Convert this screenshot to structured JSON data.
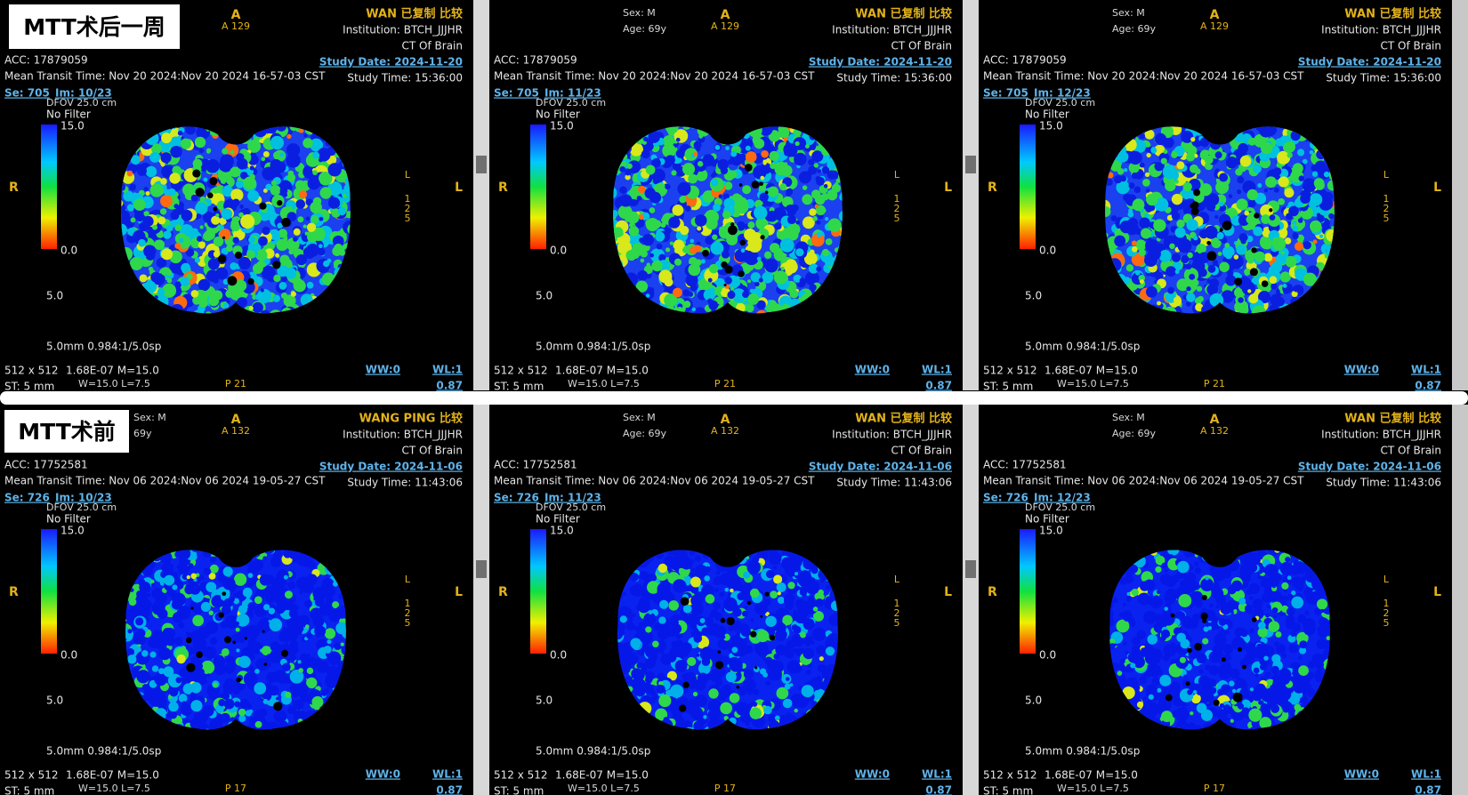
{
  "labels": [
    "MTT术后一周",
    "MTT术前"
  ],
  "panels": [
    {
      "header": "WAN 已复制 比较",
      "institution": "Institution: BTCH_JJJHR",
      "exam": "CT Of Brain",
      "study_date": "Study Date: 2024-11-20",
      "study_time": "Study Time: 15:36:00",
      "acc": "ACC: 17879059",
      "mtt": "Mean Transit Time: Nov 20 2024:Nov 20 2024 16-57-03 CST",
      "series": "Se: 705",
      "image": "Im: 10/23",
      "dfov": "DFOV 25.0 cm",
      "filter": "No Filter",
      "scale_max": "15.0",
      "scale_min": "0.0",
      "window": "5.0",
      "a_top": "A",
      "a_num": "A 129",
      "r_side": "R",
      "l_side": "L",
      "side_letter": "L",
      "side_digits": [
        "1",
        "2",
        "5"
      ],
      "thickness": "5.0mm 0.984:1/5.0sp",
      "matrix": "512 x 512",
      "meta": "1.68E-07 M=15.0",
      "st": "ST: 5 mm",
      "wl_line": "W=15.0 L=7.5",
      "p_label": "P 21",
      "ww": "WW:0",
      "wl": "WL:1",
      "zoom": "0.87"
    },
    {
      "header": "WAN 已复制 比较",
      "sex": "Sex: M",
      "age": "Age: 69y",
      "institution": "Institution: BTCH_JJJHR",
      "exam": "CT Of Brain",
      "study_date": "Study Date: 2024-11-20",
      "study_time": "Study Time: 15:36:00",
      "acc": "ACC: 17879059",
      "mtt": "Mean Transit Time: Nov 20 2024:Nov 20 2024 16-57-03 CST",
      "series": "Se: 705",
      "image": "Im: 11/23",
      "dfov": "DFOV 25.0 cm",
      "filter": "No Filter",
      "scale_max": "15.0",
      "scale_min": "0.0",
      "window": "5.0",
      "a_top": "A",
      "a_num": "A 129",
      "r_side": "R",
      "l_side": "L",
      "side_letter": "L",
      "side_digits": [
        "1",
        "2",
        "5"
      ],
      "thickness": "5.0mm 0.984:1/5.0sp",
      "matrix": "512 x 512",
      "meta": "1.68E-07 M=15.0",
      "st": "ST: 5 mm",
      "wl_line": "W=15.0 L=7.5",
      "p_label": "P 21",
      "ww": "WW:0",
      "wl": "WL:1",
      "zoom": "0.87"
    },
    {
      "header": "WAN 已复制 比较",
      "sex": "Sex: M",
      "age": "Age: 69y",
      "institution": "Institution: BTCH_JJJHR",
      "exam": "CT Of Brain",
      "study_date": "Study Date: 2024-11-20",
      "study_time": "Study Time: 15:36:00",
      "acc": "ACC: 17879059",
      "mtt": "Mean Transit Time: Nov 20 2024:Nov 20 2024 16-57-03 CST",
      "series": "Se: 705",
      "image": "Im: 12/23",
      "dfov": "DFOV 25.0 cm",
      "filter": "No Filter",
      "scale_max": "15.0",
      "scale_min": "0.0",
      "window": "5.0",
      "a_top": "A",
      "a_num": "A 129",
      "r_side": "R",
      "l_side": "L",
      "side_letter": "L",
      "side_digits": [
        "1",
        "2",
        "5"
      ],
      "thickness": "5.0mm 0.984:1/5.0sp",
      "matrix": "512 x 512",
      "meta": "1.68E-07 M=15.0",
      "st": "ST: 5 mm",
      "wl_line": "W=15.0 L=7.5",
      "p_label": "P 21",
      "ww": "WW:0",
      "wl": "WL:1",
      "zoom": "0.87"
    },
    {
      "header": "WANG PING 比较",
      "sex": "Sex: M",
      "age": "69y",
      "institution": "Institution: BTCH_JJJHR",
      "exam": "CT Of Brain",
      "study_date": "Study Date: 2024-11-06",
      "study_time": "Study Time: 11:43:06",
      "acc": "ACC: 17752581",
      "mtt": "Mean Transit Time: Nov 06 2024:Nov 06 2024 19-05-27 CST",
      "series": "Se: 726",
      "image": "Im: 10/23",
      "dfov": "DFOV 25.0 cm",
      "filter": "No Filter",
      "scale_max": "15.0",
      "scale_min": "0.0",
      "window": "5.0",
      "a_top": "A",
      "a_num": "A 132",
      "r_side": "R",
      "l_side": "L",
      "side_letter": "L",
      "side_digits": [
        "1",
        "2",
        "5"
      ],
      "thickness": "5.0mm 0.984:1/5.0sp",
      "matrix": "512 x 512",
      "meta": "1.68E-07 M=15.0",
      "st": "ST: 5 mm",
      "wl_line": "W=15.0 L=7.5",
      "p_label": "P 17",
      "ww": "WW:0",
      "wl": "WL:1",
      "zoom": "0.87"
    },
    {
      "header": "WAN 已复制 比较",
      "sex": "Sex: M",
      "age": "Age: 69y",
      "institution": "Institution: BTCH_JJJHR",
      "exam": "CT Of Brain",
      "study_date": "Study Date: 2024-11-06",
      "study_time": "Study Time: 11:43:06",
      "acc": "ACC: 17752581",
      "mtt": "Mean Transit Time: Nov 06 2024:Nov 06 2024 19-05-27 CST",
      "series": "Se: 726",
      "image": "Im: 11/23",
      "dfov": "DFOV 25.0 cm",
      "filter": "No Filter",
      "scale_max": "15.0",
      "scale_min": "0.0",
      "window": "5.0",
      "a_top": "A",
      "a_num": "A 132",
      "r_side": "R",
      "l_side": "L",
      "side_letter": "L",
      "side_digits": [
        "1",
        "2",
        "5"
      ],
      "thickness": "5.0mm 0.984:1/5.0sp",
      "matrix": "512 x 512",
      "meta": "1.68E-07 M=15.0",
      "st": "ST: 5 mm",
      "wl_line": "W=15.0 L=7.5",
      "p_label": "P 17",
      "ww": "WW:0",
      "wl": "WL:1",
      "zoom": "0.87"
    },
    {
      "header": "WAN 已复制 比较",
      "sex": "Sex: M",
      "age": "Age: 69y",
      "institution": "Institution: BTCH_JJJHR",
      "exam": "CT Of Brain",
      "study_date": "Study Date: 2024-11-06",
      "study_time": "Study Time: 11:43:06",
      "acc": "ACC: 17752581",
      "mtt": "Mean Transit Time: Nov 06 2024:Nov 06 2024 19-05-27 CST",
      "series": "Se: 726",
      "image": "Im: 12/23",
      "dfov": "DFOV 25.0 cm",
      "filter": "No Filter",
      "scale_max": "15.0",
      "scale_min": "0.0",
      "window": "5.0",
      "a_top": "A",
      "a_num": "A 132",
      "r_side": "R",
      "l_side": "L",
      "side_letter": "L",
      "side_digits": [
        "1",
        "2",
        "5"
      ],
      "thickness": "5.0mm 0.984:1/5.0sp",
      "matrix": "512 x 512",
      "meta": "1.68E-07 M=15.0",
      "st": "ST: 5 mm",
      "wl_line": "W=15.0 L=7.5",
      "p_label": "P 17",
      "ww": "WW:0",
      "wl": "WL:1",
      "zoom": "0.87"
    }
  ]
}
